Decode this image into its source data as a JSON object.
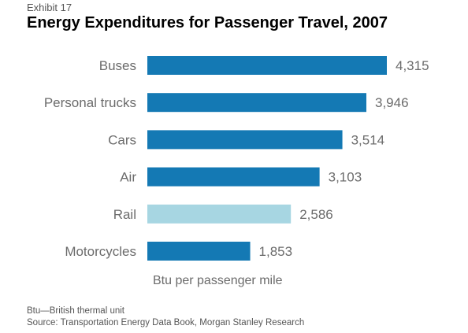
{
  "exhibit": "Exhibit 17",
  "footnotes": {
    "btu": "Btu—British thermal unit",
    "source": "Source: Transportation Energy Data Book, Morgan Stanley Research"
  },
  "colors": {
    "primary_bar": "#1479b4",
    "highlight_bar": "#a7d6e2",
    "category_text": "#6b6b6b",
    "value_text": "#6b6b6b"
  },
  "chart_data": {
    "type": "bar",
    "orientation": "horizontal",
    "title": "Energy Expenditures for Passenger Travel, 2007",
    "xlabel": "Btu per passenger mile",
    "categories": [
      "Buses",
      "Personal trucks",
      "Cars",
      "Air",
      "Rail",
      "Motorcycles"
    ],
    "values": [
      4315,
      3946,
      3514,
      3103,
      2586,
      1853
    ],
    "value_labels": [
      "4,315",
      "3,946",
      "3,514",
      "3,103",
      "2,586",
      "1,853"
    ],
    "highlighted": [
      "Rail"
    ],
    "xlim": [
      0,
      4315
    ],
    "grid": false,
    "legend": "none"
  }
}
